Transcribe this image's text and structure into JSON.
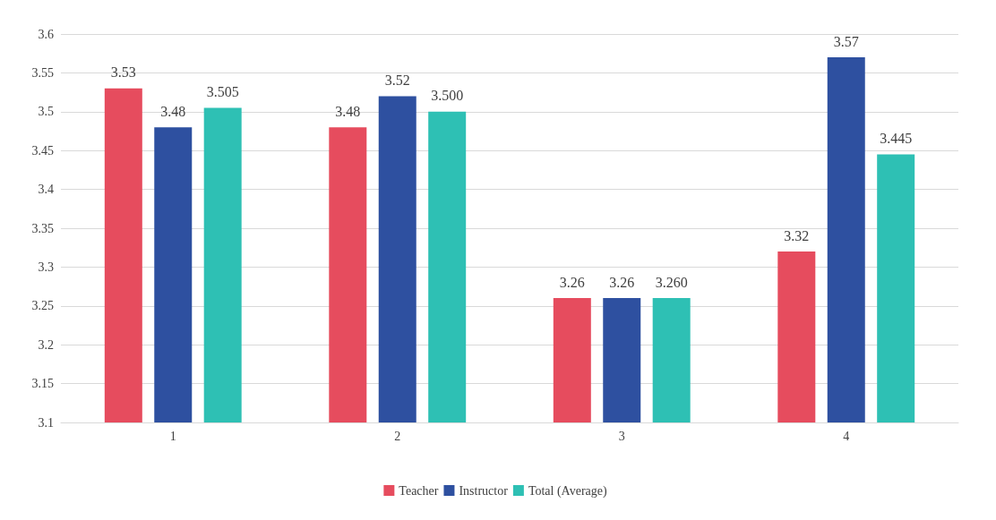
{
  "chart_data": {
    "type": "bar",
    "categories": [
      "1",
      "2",
      "3",
      "4"
    ],
    "series": [
      {
        "name": "Teacher",
        "color": "#e64c5e",
        "values": [
          3.53,
          3.48,
          3.26,
          3.32
        ],
        "value_labels": [
          "3.53",
          "3.48",
          "3.26",
          "3.32"
        ]
      },
      {
        "name": "Instructor",
        "color": "#2e50a0",
        "values": [
          3.48,
          3.52,
          3.26,
          3.57
        ],
        "value_labels": [
          "3.48",
          "3.52",
          "3.26",
          "3.57"
        ]
      },
      {
        "name": "Total (Average)",
        "color": "#2ec0b4",
        "values": [
          3.505,
          3.5,
          3.26,
          3.445
        ],
        "value_labels": [
          "3.505",
          "3.500",
          "3.260",
          "3.445"
        ]
      }
    ],
    "ylim": [
      3.1,
      3.6
    ],
    "yticks": [
      3.1,
      3.15,
      3.2,
      3.25,
      3.3,
      3.35,
      3.4,
      3.45,
      3.5,
      3.55,
      3.6
    ],
    "grid": "y",
    "legend": "bottom"
  }
}
